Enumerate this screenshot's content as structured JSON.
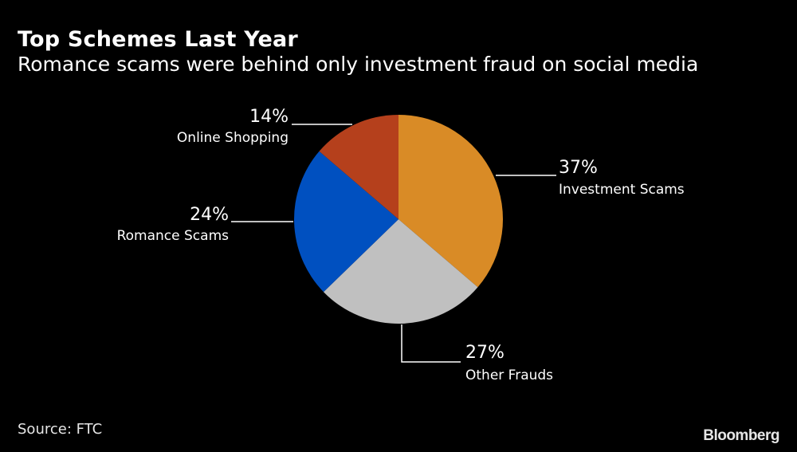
{
  "header": {
    "title": "Top Schemes Last Year",
    "subtitle": "Romance scams were behind only investment fraud on social media"
  },
  "footer": {
    "source": "Source: FTC",
    "brand": "Bloomberg"
  },
  "chart_data": {
    "type": "pie",
    "title": "Top Schemes Last Year",
    "subtitle": "Romance scams were behind only investment fraud on social media",
    "categories": [
      "Investment Scams",
      "Other Frauds",
      "Romance Scams",
      "Online Shopping"
    ],
    "values": [
      37,
      27,
      24,
      14
    ],
    "unit": "%",
    "colors": [
      "#D98B26",
      "#C0C0C0",
      "#0050C0",
      "#B5401C"
    ],
    "start_angle": "12 o'clock, clockwise",
    "labels": [
      {
        "pct": "37%",
        "name": "Investment Scams"
      },
      {
        "pct": "27%",
        "name": "Other Frauds"
      },
      {
        "pct": "24%",
        "name": "Romance Scams"
      },
      {
        "pct": "14%",
        "name": "Online Shopping"
      }
    ],
    "source": "Source: FTC"
  }
}
